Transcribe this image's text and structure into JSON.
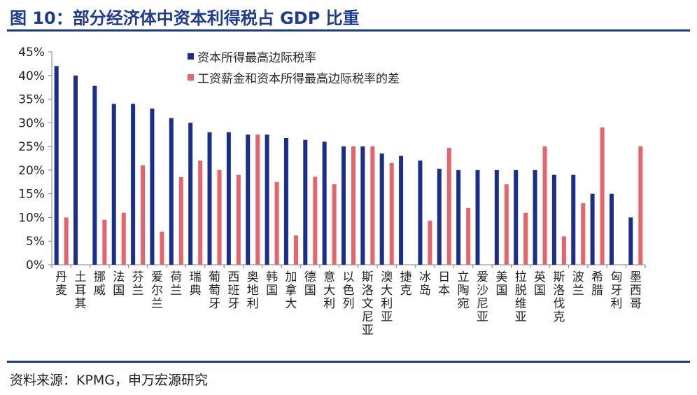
{
  "figure": {
    "title": "图 10：部分经济体中资本利得税占 GDP 比重",
    "source": "资料来源：KPMG，申万宏源研究"
  },
  "colors": {
    "series1": "#1a2e8f",
    "series2": "#e8646a",
    "accent": "#1d3b8f",
    "axis": "#7f7f7f"
  },
  "chart_data": {
    "type": "bar",
    "categories": [
      "丹麦",
      "土耳其",
      "挪威",
      "法国",
      "芬兰",
      "爱尔兰",
      "荷兰",
      "瑞典",
      "葡萄牙",
      "西班牙",
      "奥地利",
      "韩国",
      "加拿大",
      "德国",
      "意大利",
      "以色列",
      "斯洛文尼亚",
      "澳大利亚",
      "捷克",
      "冰岛",
      "日本",
      "立陶宛",
      "爱沙尼亚",
      "美国",
      "拉脱维亚",
      "英国",
      "斯洛伐克",
      "波兰",
      "希腊",
      "匈牙利",
      "墨西哥"
    ],
    "series": [
      {
        "name": "资本所得最高边际税率",
        "values": [
          42,
          40,
          37.8,
          34,
          34,
          33,
          31,
          30,
          28,
          28,
          27.5,
          27.5,
          26.8,
          26.4,
          26,
          25,
          25,
          23.5,
          23,
          22,
          20.3,
          20,
          20,
          20,
          20,
          20,
          19,
          19,
          15,
          15,
          10
        ]
      },
      {
        "name": "工资薪金和资本所得最高边际税率的差",
        "values": [
          10,
          0,
          9.5,
          11,
          21,
          7,
          18.5,
          22,
          20,
          19,
          27.5,
          17.5,
          6.2,
          18.6,
          17,
          25,
          25,
          21.5,
          0,
          9.3,
          24.7,
          12,
          0,
          17,
          11,
          25,
          6,
          13,
          29,
          0,
          25
        ]
      }
    ],
    "y_ticks": [
      "0%",
      "5%",
      "10%",
      "15%",
      "20%",
      "25%",
      "30%",
      "35%",
      "40%",
      "45%"
    ],
    "ylim": [
      0,
      45
    ],
    "grid": false,
    "legend_position": "top-center"
  }
}
